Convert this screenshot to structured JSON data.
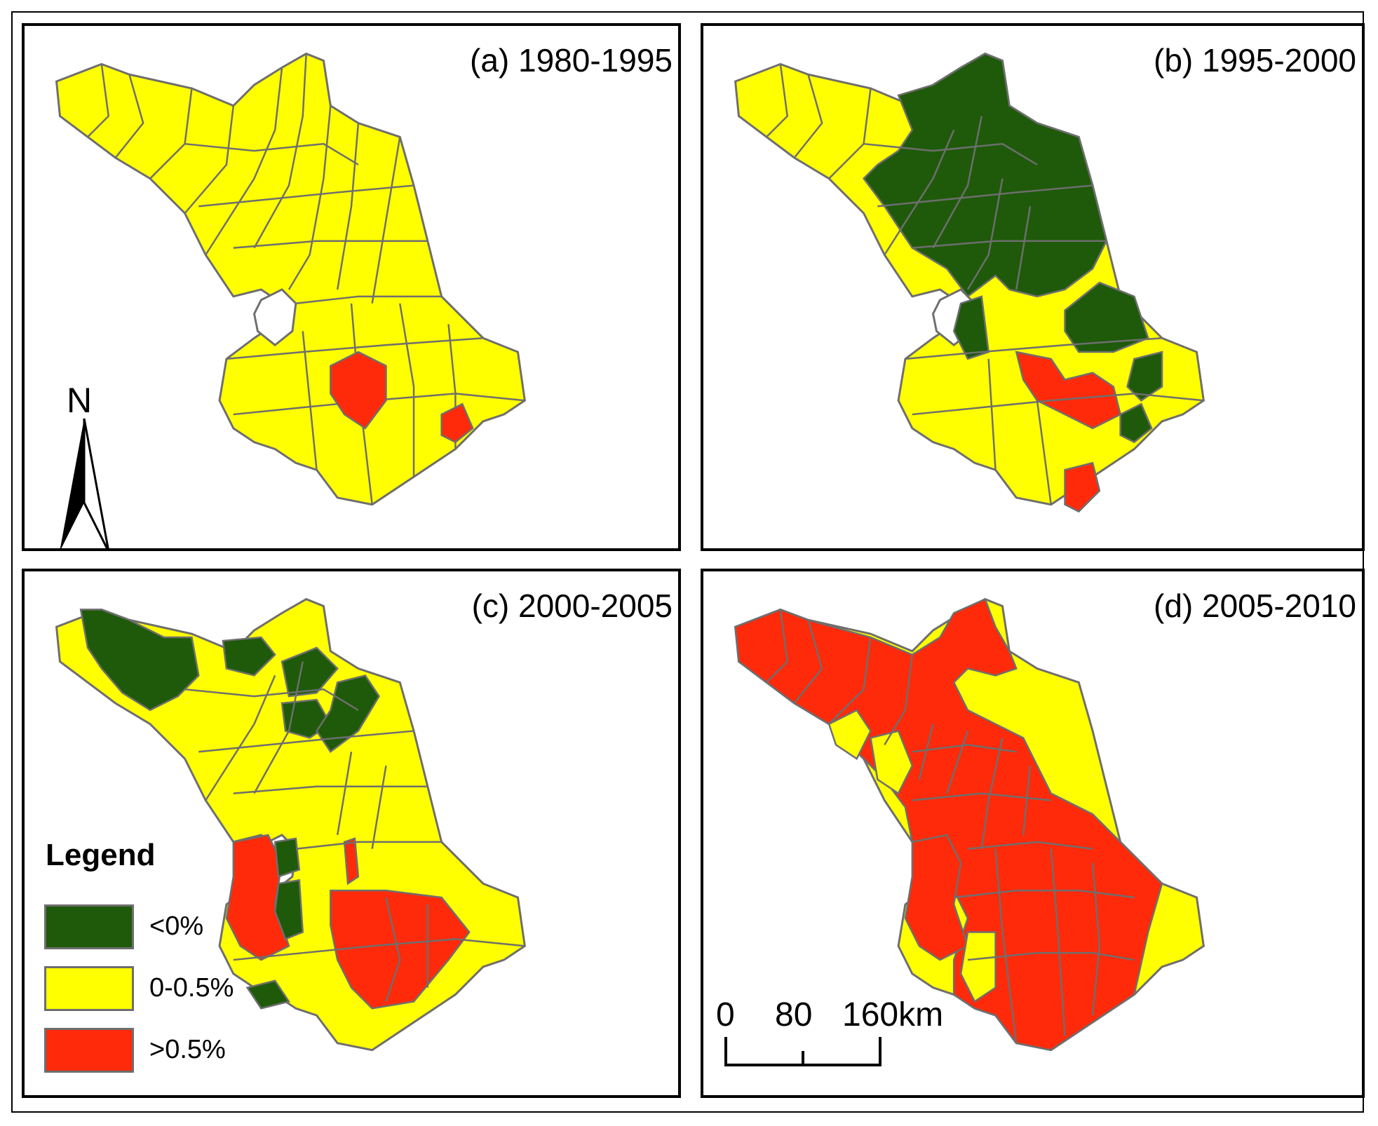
{
  "colors": {
    "neg": "#1e5a0a",
    "low": "#ffff00",
    "high": "#ff2a0a",
    "border": "#6e6e6e"
  },
  "panels": [
    {
      "title": "(a) 1980-1995"
    },
    {
      "title": "(b) 1995-2000"
    },
    {
      "title": "(c) 2000-2005"
    },
    {
      "title": "(d) 2005-2010"
    }
  ],
  "north_arrow": {
    "label": "N",
    "icon": "north-arrow-icon"
  },
  "legend": {
    "title": "Legend",
    "items": [
      {
        "label": "<0%",
        "color": "#1e5a0a"
      },
      {
        "label": "0-0.5%",
        "color": "#ffff00"
      },
      {
        "label": ">0.5%",
        "color": "#ff2a0a"
      }
    ]
  },
  "scale_bar": {
    "labels": [
      "0",
      "80",
      "160km"
    ]
  }
}
